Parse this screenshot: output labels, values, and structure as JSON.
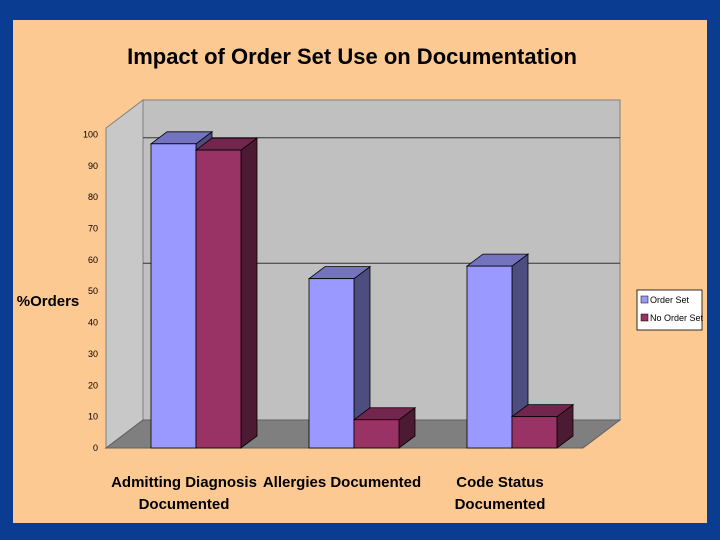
{
  "chart_data": {
    "type": "bar",
    "title": "Impact of Order Set Use on Documentation",
    "ylabel": "%Orders",
    "xlabel": "",
    "categories": [
      [
        "Admitting Diagnosis",
        "Documented"
      ],
      [
        "Allergies Documented"
      ],
      [
        "Code Status",
        "Documented"
      ]
    ],
    "series": [
      {
        "name": "Order Set",
        "values": [
          97,
          54,
          58
        ],
        "color": "#9999ff"
      },
      {
        "name": "No Order Set",
        "values": [
          95,
          9,
          10
        ],
        "color": "#993366"
      }
    ],
    "ylim": [
      0,
      100
    ],
    "yticks": [
      0,
      10,
      20,
      30,
      40,
      50,
      60,
      70,
      80,
      90,
      100
    ],
    "gridlines": [
      50,
      90
    ],
    "legend": "right",
    "three_d": true
  }
}
